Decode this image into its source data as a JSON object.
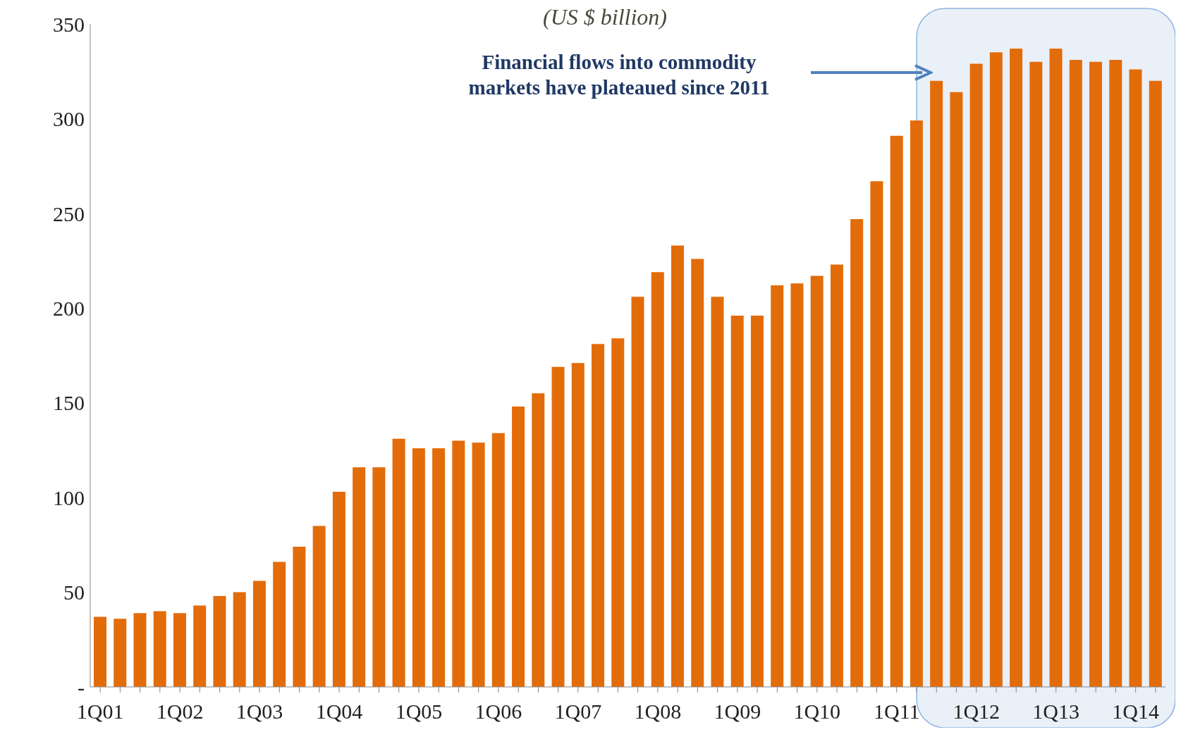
{
  "chart_data": {
    "type": "bar",
    "subtitle": "(US $ billion)",
    "categories": [
      "1Q01",
      null,
      null,
      null,
      "1Q02",
      null,
      null,
      null,
      "1Q03",
      null,
      null,
      null,
      "1Q04",
      null,
      null,
      null,
      "1Q05",
      null,
      null,
      null,
      "1Q06",
      null,
      null,
      null,
      "1Q07",
      null,
      null,
      null,
      "1Q08",
      null,
      null,
      null,
      "1Q09",
      null,
      null,
      null,
      "1Q10",
      null,
      null,
      null,
      "1Q11",
      null,
      null,
      null,
      "1Q12",
      null,
      null,
      null,
      "1Q13",
      null,
      null,
      null,
      "1Q14",
      null
    ],
    "values": [
      37,
      36,
      39,
      40,
      39,
      43,
      48,
      50,
      56,
      66,
      74,
      85,
      103,
      116,
      116,
      131,
      126,
      126,
      130,
      129,
      134,
      148,
      155,
      169,
      171,
      181,
      184,
      206,
      219,
      233,
      226,
      206,
      196,
      196,
      212,
      213,
      217,
      223,
      247,
      267,
      291,
      299,
      320,
      314,
      329,
      335,
      337,
      330,
      337,
      331,
      330,
      331,
      326,
      320
    ],
    "color": "#e36c0a",
    "ylim": [
      0,
      350
    ],
    "yticks": [
      {
        "value": 0,
        "label": "-"
      },
      50,
      100,
      150,
      200,
      250,
      300,
      350
    ],
    "annotations": [
      "Financial flows into commodity markets have plateaued since 2011"
    ]
  }
}
